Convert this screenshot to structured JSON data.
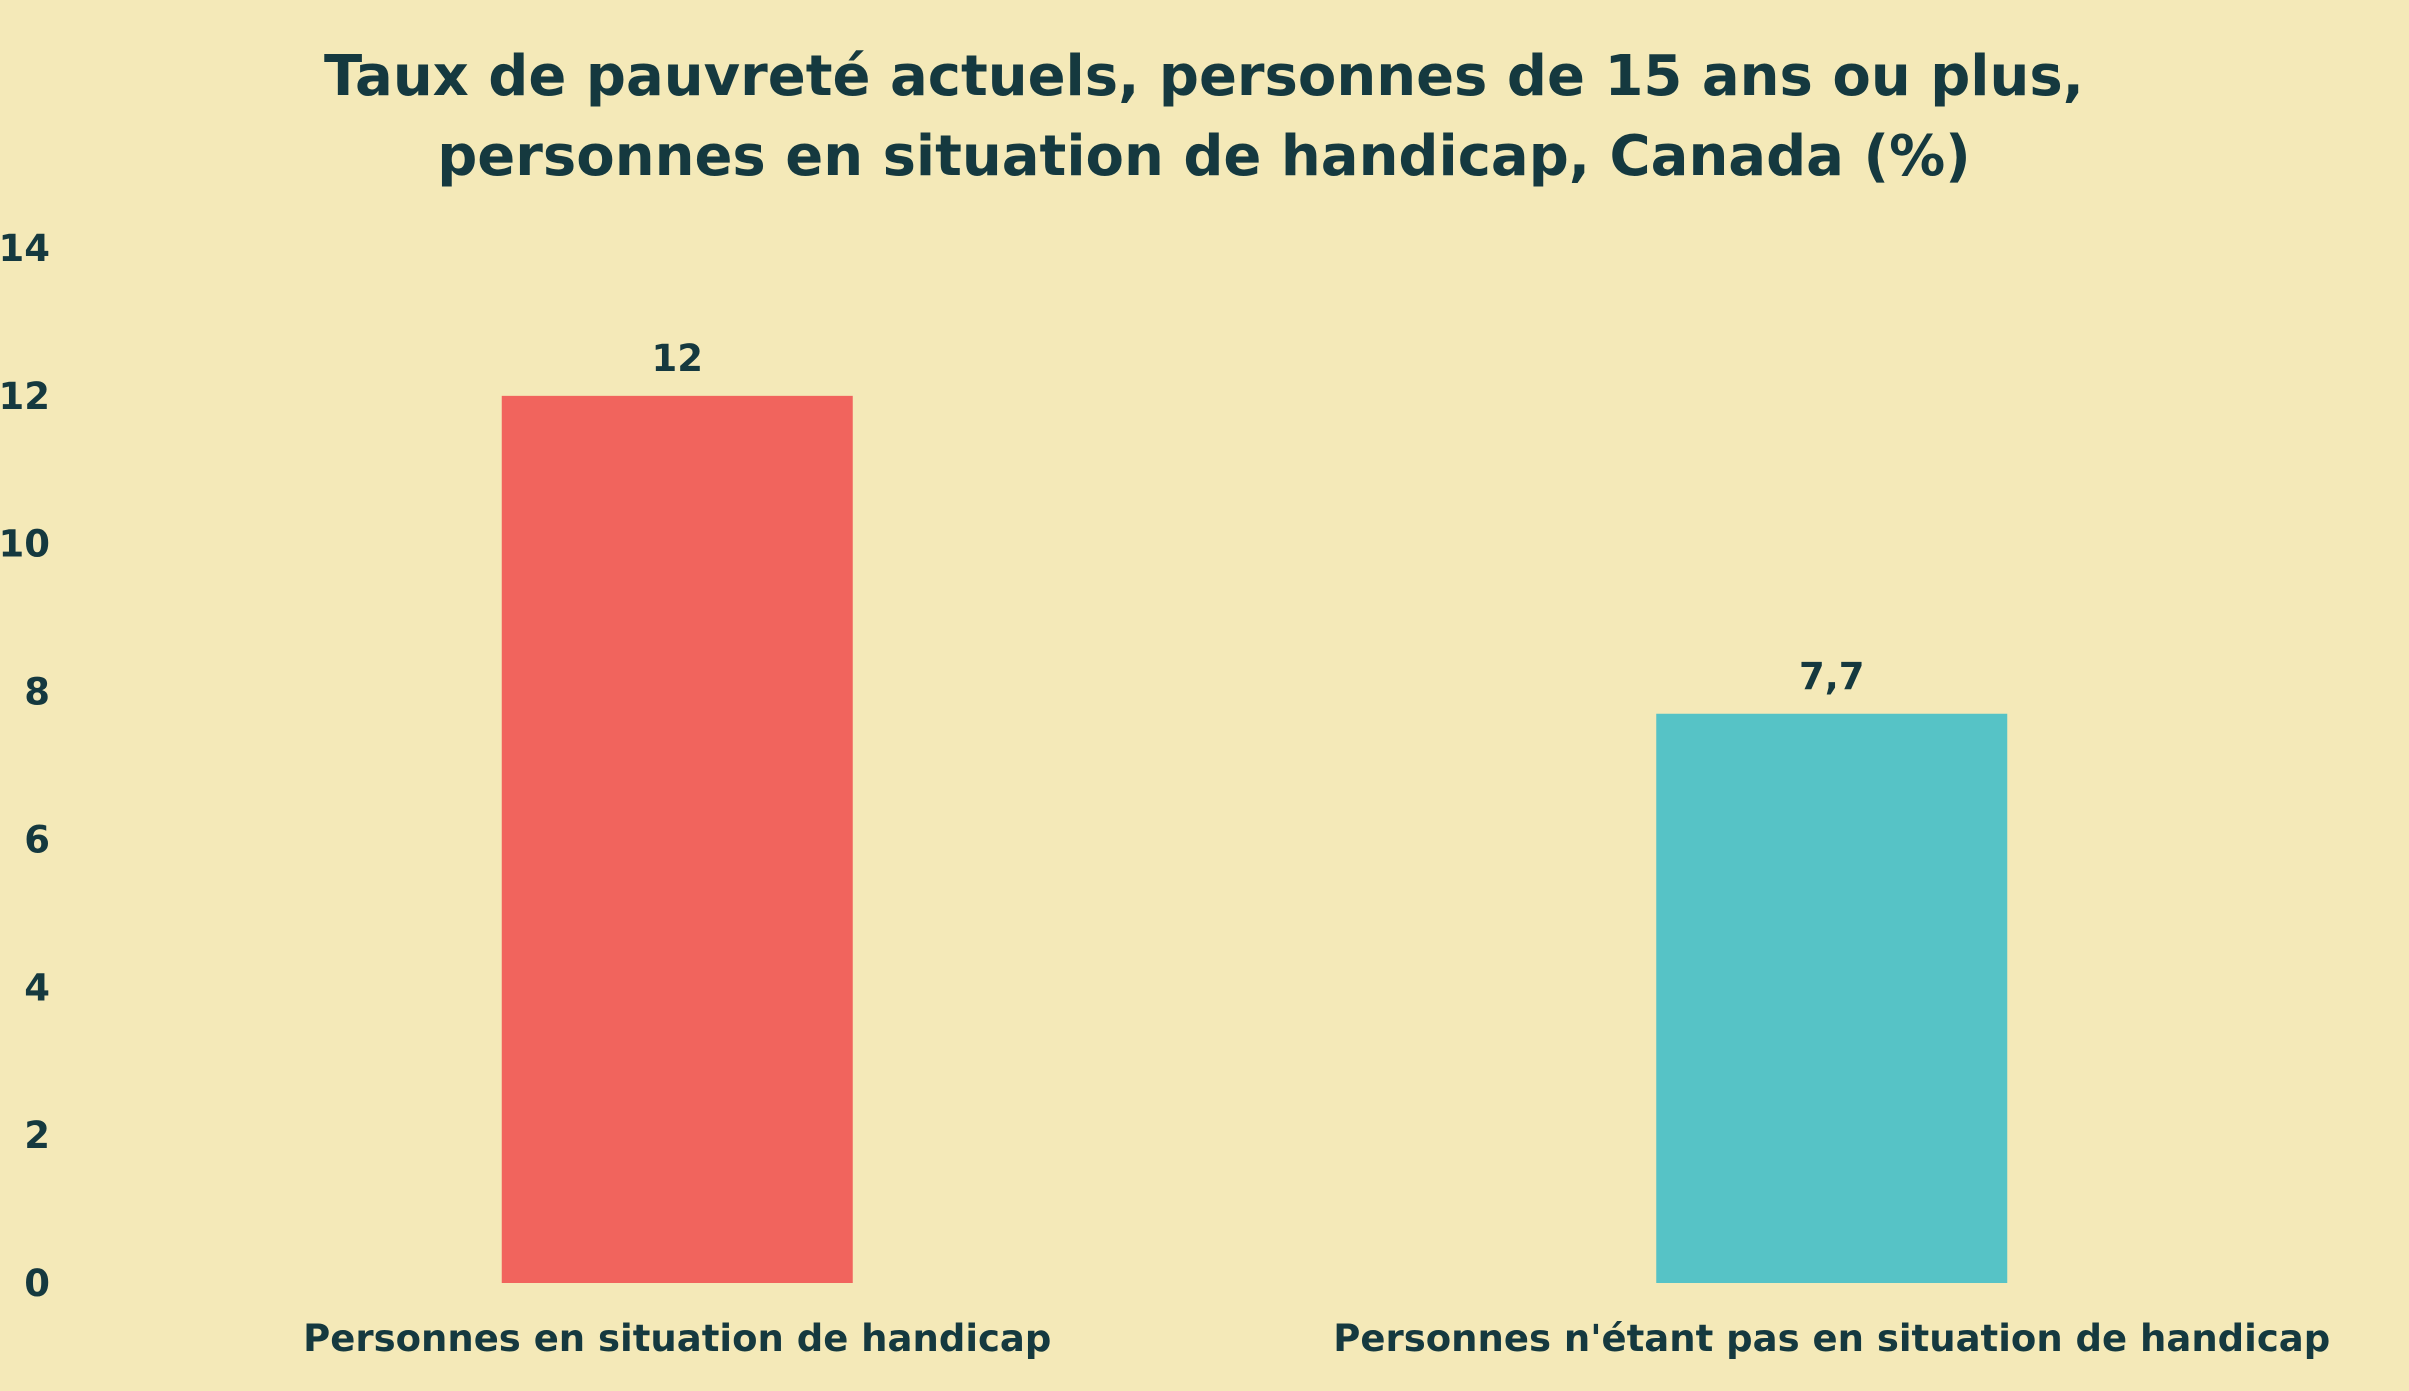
{
  "chart_data": {
    "type": "bar",
    "title_lines": [
      "Taux de pauvreté actuels, personnes de 15 ans ou plus,",
      "personnes en situation de handicap, Canada (%)"
    ],
    "categories": [
      "Personnes en situation de handicap",
      "Personnes n'étant pas en situation de handicap"
    ],
    "values": [
      12,
      7.7
    ],
    "value_labels": [
      "12",
      "7,7"
    ],
    "bar_colors": [
      "#f1645d",
      "#56c3c6"
    ],
    "ylim": [
      0,
      14
    ],
    "yticks": [
      0,
      2,
      4,
      6,
      8,
      10,
      12,
      14
    ],
    "grid": false,
    "legend": "none",
    "background": "#f4e9b8",
    "text_color": "#15393f"
  }
}
